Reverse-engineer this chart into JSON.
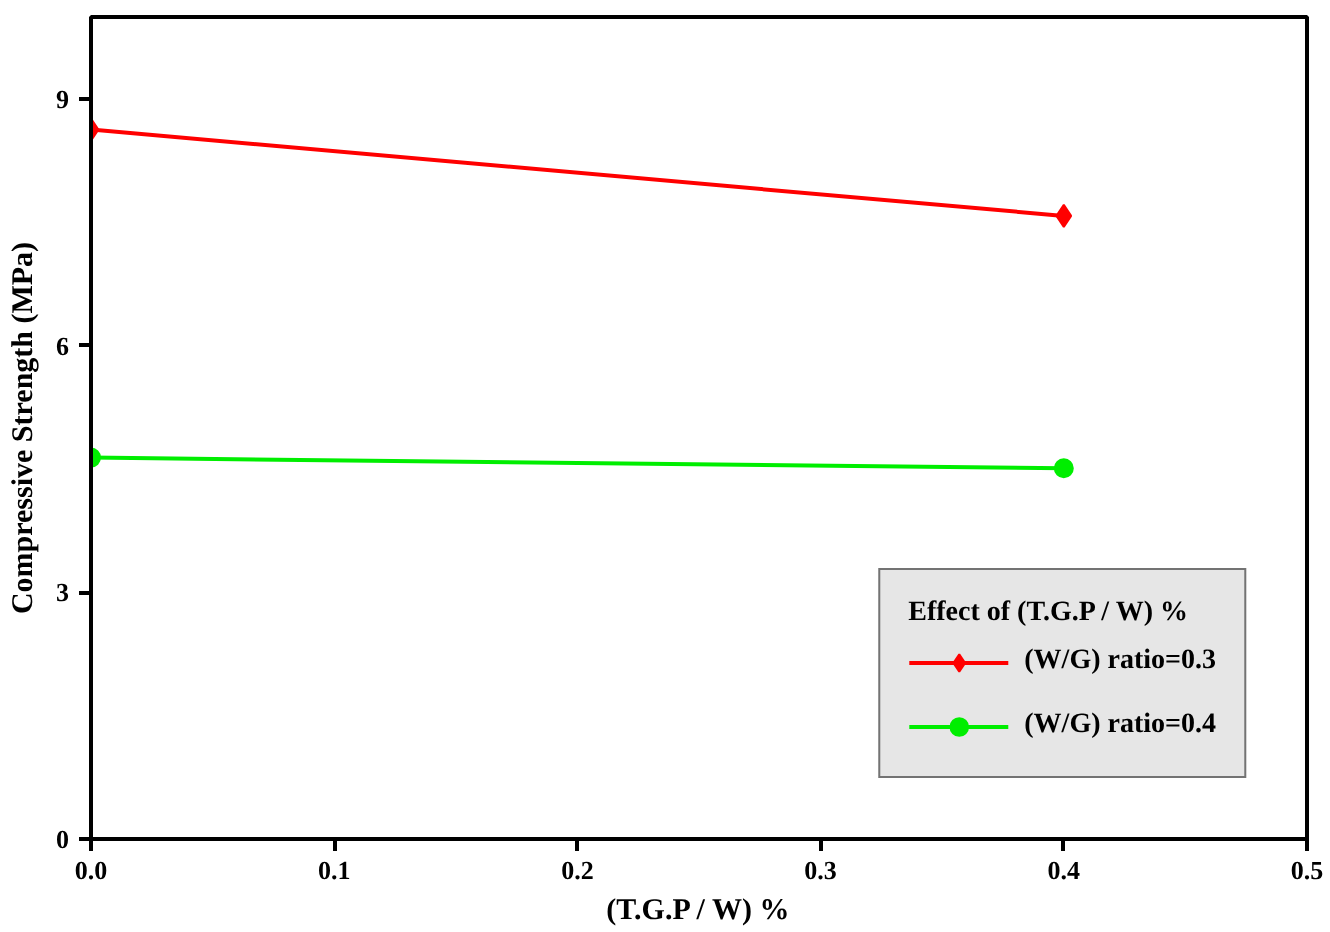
{
  "chart_data": {
    "type": "line",
    "xlabel": "(T.G.P / W) %",
    "ylabel": "Compressive Strength (MPa)",
    "legend_title": "Effect of (T.G.P / W) %",
    "x": [
      0.0,
      0.4
    ],
    "series": [
      {
        "name": "(W/G) ratio=0.3",
        "color": "#ff0000",
        "marker": "diamond",
        "values": [
          8.63,
          7.58
        ]
      },
      {
        "name": "(W/G) ratio=0.4",
        "color": "#00ee00",
        "marker": "circle",
        "values": [
          4.64,
          4.51
        ]
      }
    ],
    "xlim": [
      0.0,
      0.5
    ],
    "xticks": [
      {
        "value": 0.0,
        "label": "0.0"
      },
      0.1,
      0.2,
      0.3,
      0.4,
      0.5
    ],
    "ylim": [
      0,
      10
    ],
    "yticks": [
      0,
      3,
      6,
      9
    ],
    "grid": false,
    "legend": "bottom right"
  }
}
